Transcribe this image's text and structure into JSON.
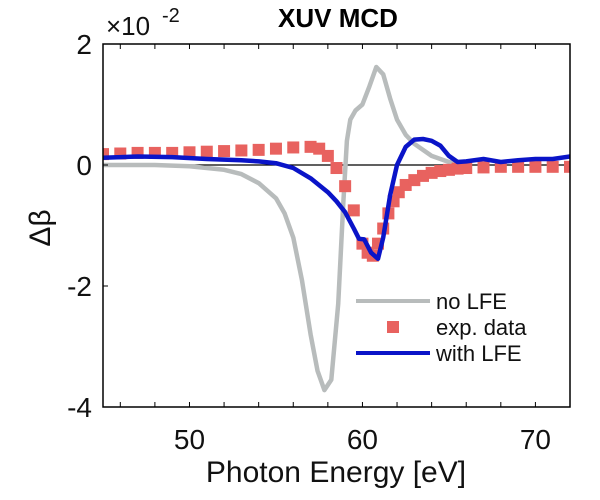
{
  "chart_data": {
    "type": "line",
    "title": "XUV MCD",
    "xlabel": "Photon Energy [eV]",
    "ylabel": "Δβ",
    "y_exponent_label": "×10",
    "y_exponent_power": "-2",
    "xlim": [
      45,
      72
    ],
    "ylim": [
      -4,
      2
    ],
    "xticks": [
      50,
      60,
      70
    ],
    "xtick_labels": [
      "50",
      "60",
      "70"
    ],
    "yticks": [
      -4,
      -2,
      0,
      2
    ],
    "ytick_labels": [
      "-4",
      "-2",
      "0",
      "2"
    ],
    "x_minor_step": 2,
    "grid": false,
    "zero_line": true,
    "legend_position": "bottom-right",
    "series": [
      {
        "name": "no LFE",
        "style": "line",
        "color": "#b8bcbc",
        "x": [
          45,
          48,
          50,
          52,
          53,
          54,
          55,
          55.5,
          56,
          56.5,
          57,
          57.4,
          57.8,
          58.2,
          58.6,
          58.9,
          59.1,
          59.3,
          59.6,
          60.0,
          60.4,
          60.8,
          61.2,
          61.6,
          62.0,
          62.5,
          63.0,
          64.0,
          65.0,
          66.0
        ],
        "y": [
          0.0,
          0.0,
          -0.02,
          -0.08,
          -0.15,
          -0.3,
          -0.55,
          -0.8,
          -1.2,
          -1.9,
          -2.8,
          -3.4,
          -3.72,
          -3.55,
          -2.3,
          -0.6,
          0.4,
          0.75,
          0.9,
          1.0,
          1.3,
          1.62,
          1.5,
          1.1,
          0.75,
          0.5,
          0.35,
          0.15,
          0.05,
          0.0
        ]
      },
      {
        "name": "exp. data",
        "style": "markers",
        "color": "#e8625f",
        "x": [
          45,
          46,
          47,
          48,
          49,
          50,
          51,
          52,
          53,
          54,
          55,
          56,
          57,
          57.5,
          58,
          58.5,
          59,
          59.5,
          60,
          60.3,
          60.6,
          60.9,
          61.2,
          61.5,
          61.8,
          62.1,
          62.5,
          63,
          63.5,
          64,
          64.5,
          65,
          65.5,
          66,
          67,
          68,
          69,
          70,
          71,
          72
        ],
        "y": [
          0.18,
          0.19,
          0.2,
          0.2,
          0.2,
          0.21,
          0.22,
          0.23,
          0.24,
          0.25,
          0.27,
          0.29,
          0.3,
          0.27,
          0.15,
          -0.05,
          -0.35,
          -0.75,
          -1.3,
          -1.45,
          -1.5,
          -1.3,
          -1.05,
          -0.8,
          -0.6,
          -0.45,
          -0.33,
          -0.25,
          -0.18,
          -0.13,
          -0.1,
          -0.08,
          -0.06,
          -0.05,
          -0.04,
          -0.03,
          -0.03,
          -0.03,
          -0.03,
          -0.03
        ]
      },
      {
        "name": "with LFE",
        "style": "line",
        "color": "#0a14c8",
        "x": [
          45,
          47,
          49,
          51,
          53,
          54,
          55,
          56,
          57,
          58,
          58.5,
          59,
          59.5,
          59.8,
          60.1,
          60.5,
          60.9,
          61.2,
          61.6,
          62.0,
          62.5,
          63.0,
          63.5,
          64.0,
          64.5,
          65.0,
          65.5,
          66.0,
          67,
          68,
          69,
          70,
          71,
          72
        ],
        "y": [
          0.12,
          0.14,
          0.13,
          0.1,
          0.08,
          0.06,
          0.03,
          -0.05,
          -0.22,
          -0.45,
          -0.6,
          -0.78,
          -1.05,
          -1.22,
          -1.23,
          -1.45,
          -1.55,
          -1.2,
          -0.5,
          0.0,
          0.3,
          0.42,
          0.43,
          0.4,
          0.32,
          0.15,
          0.05,
          0.06,
          0.1,
          0.05,
          0.08,
          0.1,
          0.1,
          0.14
        ]
      }
    ]
  }
}
